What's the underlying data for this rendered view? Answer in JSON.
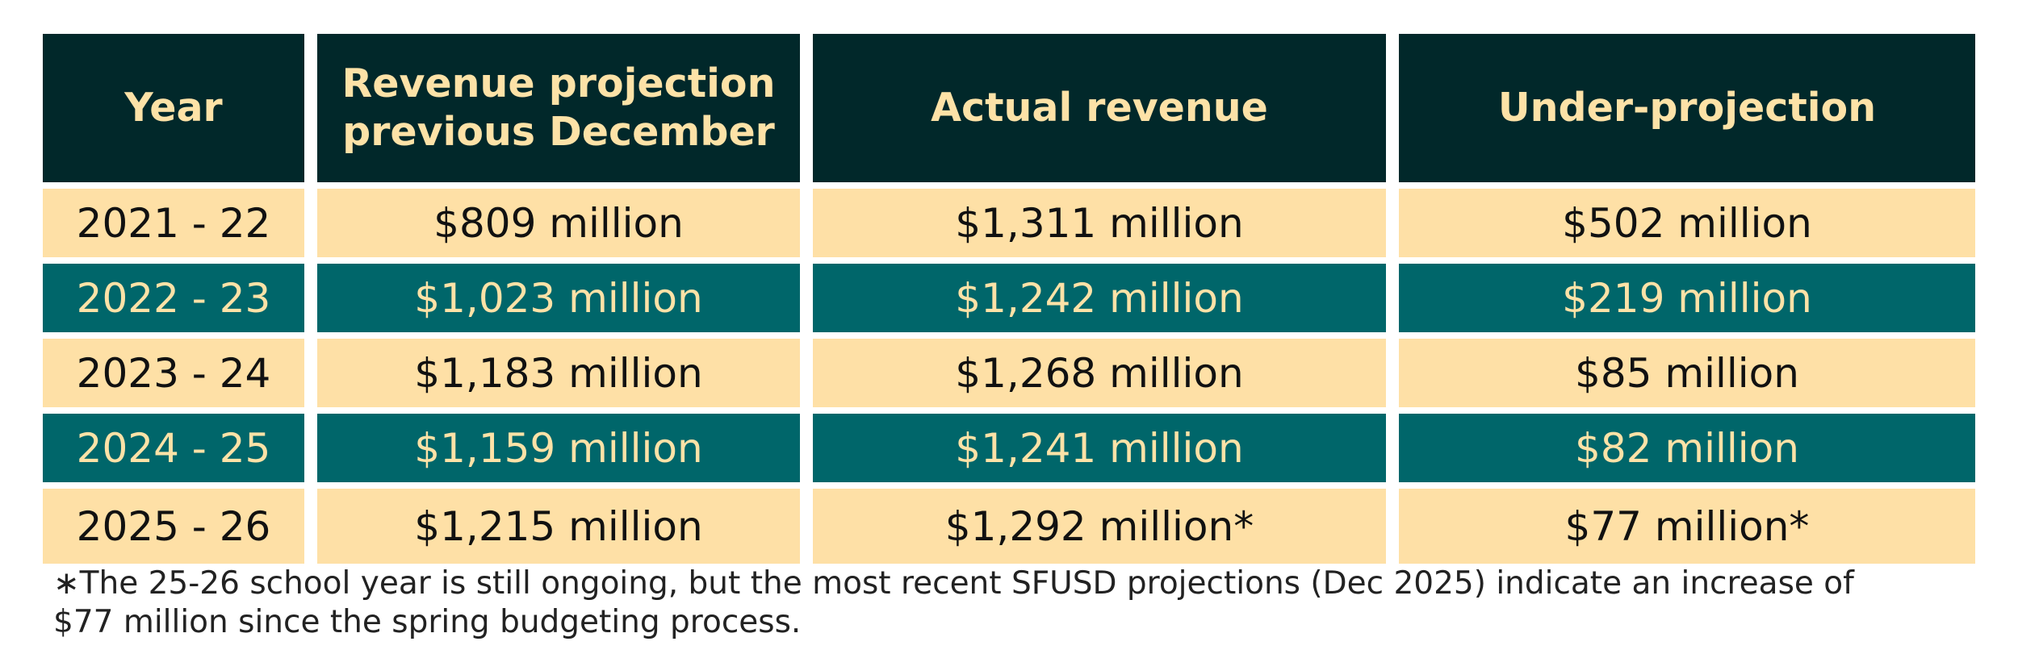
{
  "chart_data": {
    "type": "table",
    "columns": [
      {
        "label_lines": [
          "Year"
        ]
      },
      {
        "label_lines": [
          "Revenue projection",
          "previous December"
        ]
      },
      {
        "label_lines": [
          "Actual revenue"
        ]
      },
      {
        "label_lines": [
          "Under-projection"
        ]
      }
    ],
    "rows": [
      {
        "style": "light",
        "cells": [
          "2021 - 22",
          "$809 million",
          "$1,311 million",
          "$502 million"
        ]
      },
      {
        "style": "dark",
        "cells": [
          "2022 - 23",
          "$1,023 million",
          "$1,242 million",
          "$219 million"
        ]
      },
      {
        "style": "light",
        "cells": [
          "2023 - 24",
          "$1,183 million",
          "$1,268 million",
          "$85 million"
        ]
      },
      {
        "style": "dark",
        "cells": [
          "2024 - 25",
          "$1,159 million",
          "$1,241 million",
          "$82 million"
        ]
      },
      {
        "style": "light",
        "cells": [
          "2025 - 26",
          "$1,215 million",
          "$1,292 million*",
          "$77 million*"
        ]
      }
    ],
    "footnote_lines": [
      "∗The 25-26 school year is still ongoing, but the most recent SFUSD projections (Dec 2025) indicate an increase of",
      "$77 million since the spring budgeting process."
    ]
  },
  "colors": {
    "header_bg": "#01282a",
    "header_text": "#fde2a7",
    "row_light_bg": "#fee0a6",
    "row_light_text": "#111111",
    "row_dark_bg": "#00666a",
    "row_dark_text": "#fde2a7"
  }
}
